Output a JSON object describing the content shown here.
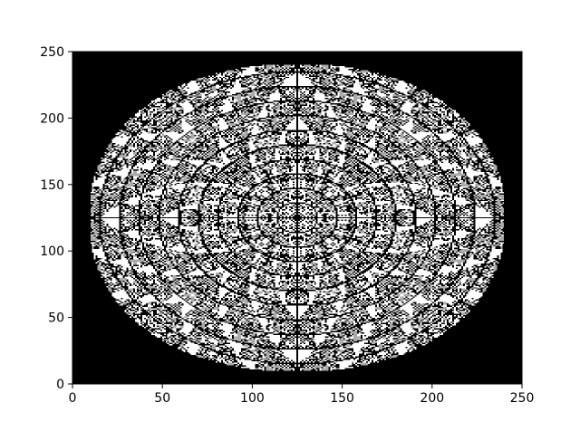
{
  "chart_data": {
    "type": "heatmap",
    "title": "",
    "xlabel": "",
    "ylabel": "",
    "xlim": [
      0,
      250
    ],
    "ylim": [
      0,
      250
    ],
    "x_ticks": [
      0,
      50,
      100,
      150,
      200,
      250
    ],
    "y_ticks": [
      0,
      50,
      100,
      150,
      200,
      250
    ],
    "x_tick_labels": [
      "0",
      "50",
      "100",
      "150",
      "200",
      "250"
    ],
    "y_tick_labels": [
      "0",
      "50",
      "100",
      "150",
      "200",
      "250"
    ],
    "grid": false,
    "colormap": "binary (black / white / gray)",
    "background_color": "#000000",
    "pattern": {
      "description": "symmetric cellular-automaton style pattern inside an elliptical region",
      "ellipse_center": [
        125,
        125
      ],
      "ellipse_radii": [
        116,
        116
      ],
      "flat_top_y": 241,
      "flat_bottom_y": 9,
      "flat_left_x": 9,
      "flat_right_x": 241
    },
    "colors": {
      "on": "#000000",
      "off": "#ffffff",
      "mid": "#aaaaaa"
    }
  }
}
